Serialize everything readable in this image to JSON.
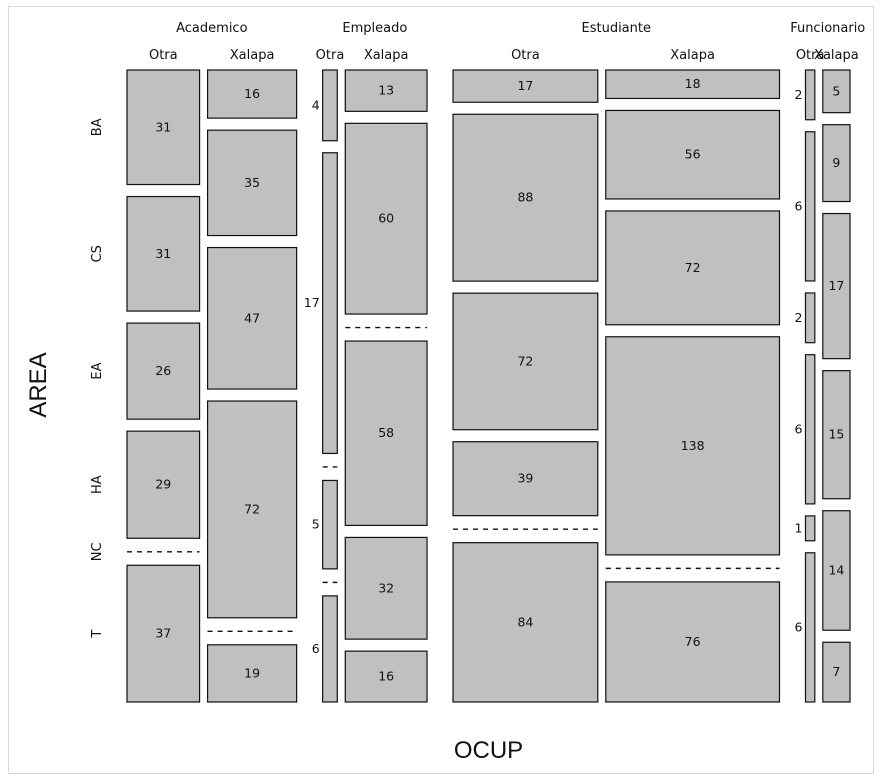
{
  "chart_data": {
    "type": "mosaic",
    "xlabel": "OCUP",
    "ylabel": "AREA",
    "ocup": [
      "Academico",
      "Empleado",
      "Estudiante",
      "Funcionario"
    ],
    "residence": [
      "Otra",
      "Xalapa"
    ],
    "areas": [
      "BA",
      "CS",
      "EA",
      "HA",
      "NC",
      "T"
    ],
    "counts": {
      "Academico": {
        "Otra": {
          "BA": 31,
          "CS": 31,
          "EA": 26,
          "HA": 29,
          "NC": 0,
          "T": 37
        },
        "Xalapa": {
          "BA": 16,
          "CS": 35,
          "EA": 47,
          "HA": 72,
          "NC": 0,
          "T": 19
        }
      },
      "Empleado": {
        "Otra": {
          "BA": 4,
          "CS": 17,
          "EA": 0,
          "HA": 5,
          "NC": 0,
          "T": 6
        },
        "Xalapa": {
          "BA": 13,
          "CS": 60,
          "EA": 0,
          "HA": 58,
          "NC": 32,
          "T": 16
        }
      },
      "Estudiante": {
        "Otra": {
          "BA": 17,
          "CS": 88,
          "EA": 72,
          "HA": 39,
          "NC": 0,
          "T": 84
        },
        "Xalapa": {
          "BA": 18,
          "CS": 56,
          "EA": 72,
          "HA": 138,
          "NC": 0,
          "T": 76
        }
      },
      "Funcionario": {
        "Otra": {
          "BA": 2,
          "CS": 6,
          "EA": 2,
          "HA": 6,
          "NC": 1,
          "T": 6
        },
        "Xalapa": {
          "BA": 5,
          "CS": 9,
          "EA": 17,
          "HA": 15,
          "NC": 14,
          "T": 7
        }
      }
    }
  }
}
